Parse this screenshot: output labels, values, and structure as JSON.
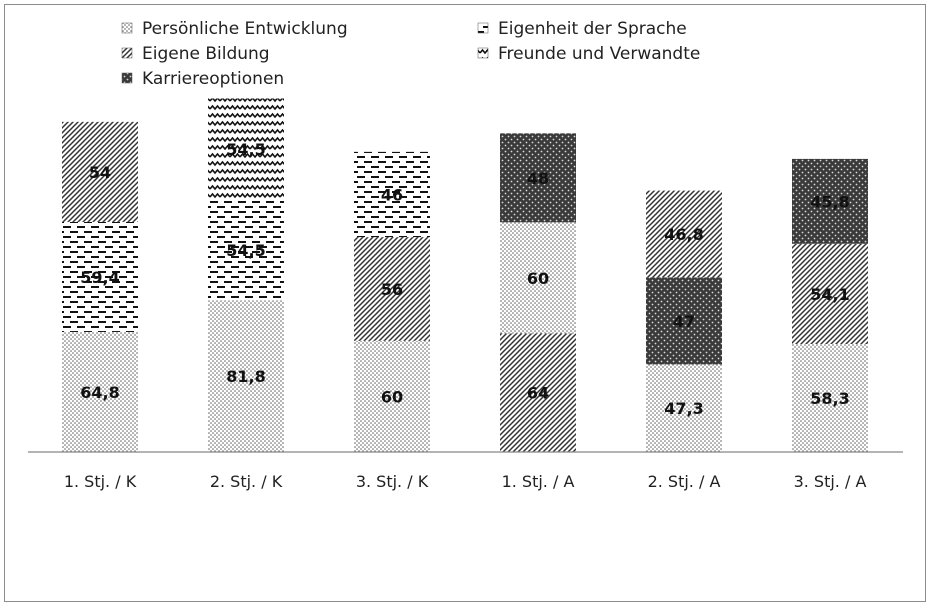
{
  "chart_data": {
    "type": "bar",
    "stacked": true,
    "categories": [
      "1. Stj. / K",
      "2. Stj. / K",
      "3. Stj. / K",
      "1. Stj. / A",
      "2. Stj. / A",
      "3. Stj. / A"
    ],
    "segments": [
      [
        {
          "series": "Persönliche Entwicklung",
          "value": 64.8,
          "label": "64,8"
        },
        {
          "series": "Eigenheit der Sprache",
          "value": 59.4,
          "label": "59,4"
        },
        {
          "series": "Eigene Bildung",
          "value": 54,
          "label": "54"
        }
      ],
      [
        {
          "series": "Persönliche Entwicklung",
          "value": 81.8,
          "label": "81,8"
        },
        {
          "series": "Eigenheit der Sprache",
          "value": 54.5,
          "label": "54,5"
        },
        {
          "series": "Freunde und Verwandte",
          "value": 54.5,
          "label": "54,5"
        }
      ],
      [
        {
          "series": "Persönliche Entwicklung",
          "value": 60,
          "label": "60"
        },
        {
          "series": "Eigene Bildung",
          "value": 56,
          "label": "56"
        },
        {
          "series": "Eigenheit der Sprache",
          "value": 46,
          "label": "46"
        }
      ],
      [
        {
          "series": "Eigene Bildung",
          "value": 64,
          "label": "64"
        },
        {
          "series": "Persönliche Entwicklung",
          "value": 60,
          "label": "60"
        },
        {
          "series": "Karriereoptionen",
          "value": 48,
          "label": "48"
        }
      ],
      [
        {
          "series": "Persönliche Entwicklung",
          "value": 47.3,
          "label": "47,3"
        },
        {
          "series": "Karriereoptionen",
          "value": 47,
          "label": "47"
        },
        {
          "series": "Eigene Bildung",
          "value": 46.8,
          "label": "46,8"
        }
      ],
      [
        {
          "series": "Persönliche Entwicklung",
          "value": 58.3,
          "label": "58,3"
        },
        {
          "series": "Eigene Bildung",
          "value": 54.1,
          "label": "54,1"
        },
        {
          "series": "Karriereoptionen",
          "value": 45.8,
          "label": "45,8"
        }
      ]
    ],
    "series": [
      {
        "name": "Persönliche Entwicklung",
        "pattern": "dots"
      },
      {
        "name": "Eigenheit der Sprache",
        "pattern": "dashes"
      },
      {
        "name": "Eigene Bildung",
        "pattern": "diagonal"
      },
      {
        "name": "Freunde und Verwandte",
        "pattern": "zigzag"
      },
      {
        "name": "Karriereoptionen",
        "pattern": "dark-dots"
      }
    ],
    "legend_position": "top",
    "grid": false,
    "ylim": [
      0,
      190
    ]
  }
}
